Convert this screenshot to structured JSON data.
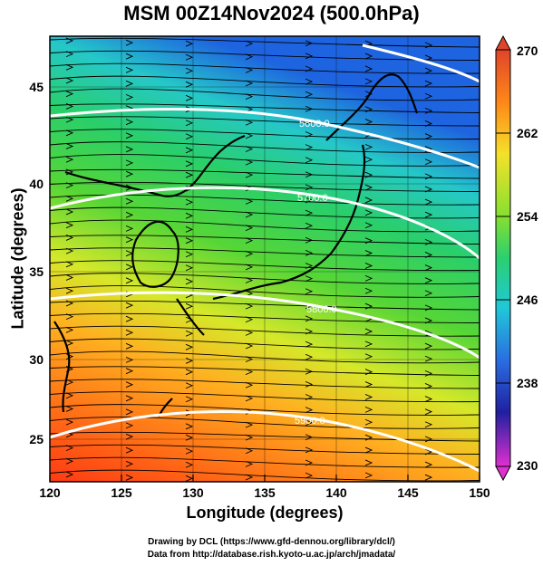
{
  "title": "MSM 00Z14Nov2024 (500.0hPa)",
  "x_axis": {
    "label": "Longitude (degrees)",
    "ticks": [
      "120",
      "125",
      "130",
      "135",
      "140",
      "145",
      "150"
    ]
  },
  "y_axis": {
    "label": "Latitude  (degrees)",
    "ticks": [
      "25",
      "30",
      "35",
      "40",
      "45"
    ]
  },
  "colorbar": {
    "ticks": [
      "270",
      "262",
      "254",
      "246",
      "238",
      "230"
    ]
  },
  "contours": [
    {
      "label": "5600.0"
    },
    {
      "label": "5700.0"
    },
    {
      "label": "5800.0"
    },
    {
      "label": "5900.0"
    }
  ],
  "credits": {
    "line1": "Drawing by DCL (https://www.gfd-dennou.org/library/dcl/)",
    "line2": "Data from http://database.rish.kyoto-u.ac.jp/arch/jmadata/"
  },
  "chart_data": {
    "type": "heatmap",
    "title": "MSM 00Z14Nov2024 (500.0hPa)",
    "xlabel": "Longitude (degrees)",
    "ylabel": "Latitude  (degrees)",
    "xlim": [
      120,
      150
    ],
    "ylim": [
      22.5,
      47.5
    ],
    "colorbar_range": [
      230,
      270
    ],
    "colorbar_ticks": [
      230,
      238,
      246,
      254,
      262,
      270
    ],
    "contour_levels": [
      5600,
      5700,
      5800,
      5900
    ],
    "vector_field": "streamlines (westerly flow)",
    "grid": true
  }
}
